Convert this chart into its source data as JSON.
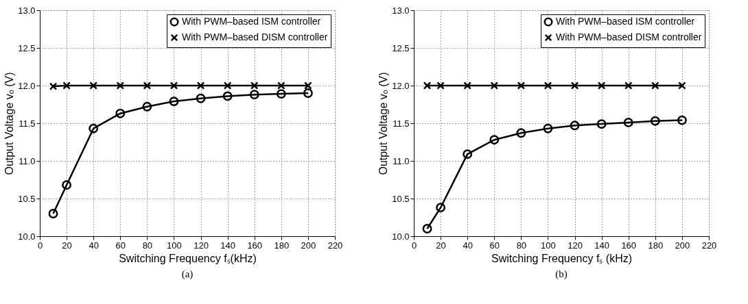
{
  "chart_data": [
    {
      "type": "line",
      "xlabel": "Switching Frequency fₛ(kHz)",
      "ylabel": "Output Voltage vₒ (V)",
      "annotations": [
        "(a)"
      ],
      "x": [
        10,
        20,
        40,
        60,
        80,
        100,
        120,
        140,
        160,
        180,
        200
      ],
      "series": [
        {
          "name": "With PWM–based ISM controller",
          "color": "#000000",
          "marker": "circle",
          "values": [
            10.3,
            10.68,
            11.43,
            11.63,
            11.72,
            11.79,
            11.83,
            11.86,
            11.88,
            11.89,
            11.9
          ]
        },
        {
          "name": "With PWM–based DISM controller",
          "color": "#000000",
          "marker": "cross",
          "values": [
            11.99,
            12.0,
            12.0,
            12.0,
            12.0,
            12.0,
            12.0,
            12.0,
            12.0,
            12.0,
            12.0
          ]
        }
      ],
      "xlim": [
        0,
        220
      ],
      "xticks": [
        0,
        20,
        40,
        60,
        80,
        100,
        120,
        140,
        160,
        180,
        200,
        220
      ],
      "ylim": [
        10,
        13
      ],
      "yticks": [
        {
          "value": 10,
          "label": "10.0"
        },
        {
          "value": 10.5,
          "label": "10.5"
        },
        {
          "value": 11,
          "label": "11.0"
        },
        {
          "value": 11.5,
          "label": "11.5"
        },
        {
          "value": 12,
          "label": "12.0"
        },
        {
          "value": 12.5,
          "label": "12.5"
        },
        {
          "value": 13,
          "label": "13.0"
        }
      ],
      "grid": true,
      "legend": "top right",
      "line_style": "solid"
    },
    {
      "type": "line",
      "xlabel": "Switching Frequency fₛ (kHz)",
      "ylabel": "Output Voltage vₒ (V)",
      "annotations": [
        "(b)"
      ],
      "x": [
        10,
        20,
        40,
        60,
        80,
        100,
        120,
        140,
        160,
        180,
        200
      ],
      "series": [
        {
          "name": "With PWM–based ISM controller",
          "color": "#000000",
          "marker": "circle",
          "values": [
            10.1,
            10.38,
            11.09,
            11.28,
            11.37,
            11.43,
            11.47,
            11.49,
            11.51,
            11.53,
            11.54
          ]
        },
        {
          "name": "With PWM–based DISM controller",
          "color": "#000000",
          "marker": "cross",
          "values": [
            12.0,
            12.0,
            12.0,
            12.0,
            12.0,
            12.0,
            12.0,
            12.0,
            12.0,
            12.0,
            12.0
          ]
        }
      ],
      "xlim": [
        0,
        220
      ],
      "xticks": [
        0,
        20,
        40,
        60,
        80,
        100,
        120,
        140,
        160,
        180,
        200,
        220
      ],
      "ylim": [
        10,
        13
      ],
      "yticks": [
        {
          "value": 10,
          "label": "10.0"
        },
        {
          "value": 10.5,
          "label": "10.5"
        },
        {
          "value": 11,
          "label": "11.0"
        },
        {
          "value": 11.5,
          "label": "11.5"
        },
        {
          "value": 12,
          "label": "12.0"
        },
        {
          "value": 12.5,
          "label": "12.5"
        },
        {
          "value": 13,
          "label": "13.0"
        }
      ],
      "grid": true,
      "legend": "top right",
      "line_style": "solid"
    }
  ]
}
